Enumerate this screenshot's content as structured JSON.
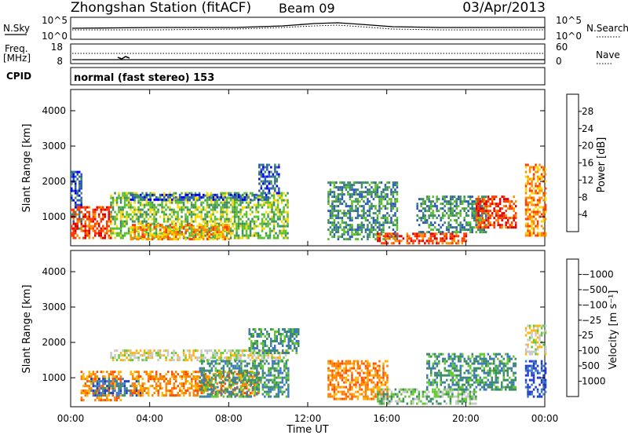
{
  "header": {
    "station": "Zhongshan Station (fitACF)",
    "beam": "Beam 09",
    "date": "03/Apr/2013"
  },
  "strip_panels": {
    "nsky": {
      "left_label": "N.Sky",
      "left_ticks": [
        "10^5",
        "10^0"
      ],
      "right_ticks": [
        "10^5",
        "10^0"
      ],
      "right_label": "N.Search"
    },
    "freq": {
      "left_label_1": "Freq.",
      "left_label_2": "[MHz]",
      "left_ticks": [
        "18",
        "8"
      ],
      "right_ticks": [
        "60",
        "0"
      ],
      "right_label": "Nave"
    },
    "cpid": {
      "label": "CPID",
      "mode_text": "normal (fast stereo) 153"
    }
  },
  "chart_data": [
    {
      "type": "heatmap",
      "name": "power",
      "ylabel": "Slant Range [km]",
      "ylim": [
        180,
        4600
      ],
      "yticks": [
        1000,
        2000,
        3000,
        4000
      ],
      "xlim": [
        0,
        24
      ],
      "xticks": [
        0,
        4,
        8,
        12,
        16,
        20,
        24
      ],
      "colorbar": {
        "label": "Power [dB]",
        "ticks": [
          "4",
          "8",
          "12",
          "16",
          "20",
          "24",
          "28"
        ],
        "colors": [
          "#0000ff",
          "#2c5ab6",
          "#3c8c64",
          "#5abe28",
          "#ffd700",
          "#ff8c00",
          "#ff3c00",
          "#e00000"
        ]
      },
      "regions": [
        {
          "t0": 0.0,
          "t1": 0.5,
          "r0": 500,
          "r1": 2300,
          "level": 1
        },
        {
          "t0": 0.0,
          "t1": 2.0,
          "r0": 400,
          "r1": 1300,
          "level": 6
        },
        {
          "t0": 2.0,
          "t1": 11.0,
          "r0": 400,
          "r1": 1700,
          "level": 3
        },
        {
          "t0": 3.0,
          "t1": 10.0,
          "r0": 1500,
          "r1": 1650,
          "level": 1
        },
        {
          "t0": 3.0,
          "t1": 8.0,
          "r0": 400,
          "r1": 800,
          "level": 5
        },
        {
          "t0": 9.5,
          "t1": 10.5,
          "r0": 1700,
          "r1": 2500,
          "level": 1
        },
        {
          "t0": 13.0,
          "t1": 16.5,
          "r0": 400,
          "r1": 2000,
          "level": 2
        },
        {
          "t0": 15.5,
          "t1": 20.0,
          "r0": 250,
          "r1": 550,
          "level": 6
        },
        {
          "t0": 17.5,
          "t1": 21.0,
          "r0": 600,
          "r1": 1600,
          "level": 2
        },
        {
          "t0": 20.5,
          "t1": 22.5,
          "r0": 700,
          "r1": 1600,
          "level": 6
        },
        {
          "t0": 23.0,
          "t1": 24.0,
          "r0": 500,
          "r1": 2500,
          "level": 5
        }
      ]
    },
    {
      "type": "heatmap",
      "name": "velocity",
      "ylabel": "Slant Range [km]",
      "ylim": [
        180,
        4600
      ],
      "yticks": [
        1000,
        2000,
        3000,
        4000
      ],
      "xlim": [
        0,
        24
      ],
      "xticks": [
        0,
        4,
        8,
        12,
        16,
        20,
        24
      ],
      "xlabel": "Time UT",
      "xticklabels": [
        "00:00",
        "04:00",
        "08:00",
        "12:00",
        "16:00",
        "20:00",
        "00:00"
      ],
      "colorbar": {
        "label": "Velocity [m s⁻¹]",
        "ticks": [
          "1000",
          "500",
          "100",
          "25",
          "−25",
          "−100",
          "−500",
          "−1000"
        ],
        "colors": [
          "#1e3cc8",
          "#3c78c8",
          "#3c8c64",
          "#64c832",
          "#c8c8c8",
          "#ffb400",
          "#ff8200",
          "#ff5000",
          "#e00000"
        ]
      },
      "regions": [
        {
          "t0": 0.5,
          "t1": 2.5,
          "r0": 400,
          "r1": 1200,
          "level": 6
        },
        {
          "t0": 1.0,
          "t1": 3.5,
          "r0": 500,
          "r1": 1000,
          "level": 1
        },
        {
          "t0": 2.0,
          "t1": 11.0,
          "r0": 1500,
          "r1": 1800,
          "level": 4
        },
        {
          "t0": 3.0,
          "t1": 9.5,
          "r0": 500,
          "r1": 1200,
          "level": 6
        },
        {
          "t0": 6.5,
          "t1": 11.0,
          "r0": 500,
          "r1": 1500,
          "level": 2
        },
        {
          "t0": 9.0,
          "t1": 11.5,
          "r0": 1700,
          "r1": 2400,
          "level": 2
        },
        {
          "t0": 13.0,
          "t1": 16.0,
          "r0": 400,
          "r1": 1500,
          "level": 6
        },
        {
          "t0": 15.5,
          "t1": 20.5,
          "r0": 300,
          "r1": 700,
          "level": 3
        },
        {
          "t0": 18.0,
          "t1": 22.5,
          "r0": 700,
          "r1": 1700,
          "level": 2
        },
        {
          "t0": 23.0,
          "t1": 24.0,
          "r0": 500,
          "r1": 1500,
          "level": 0
        },
        {
          "t0": 23.0,
          "t1": 24.0,
          "r0": 1700,
          "r1": 2500,
          "level": 4
        }
      ]
    }
  ]
}
